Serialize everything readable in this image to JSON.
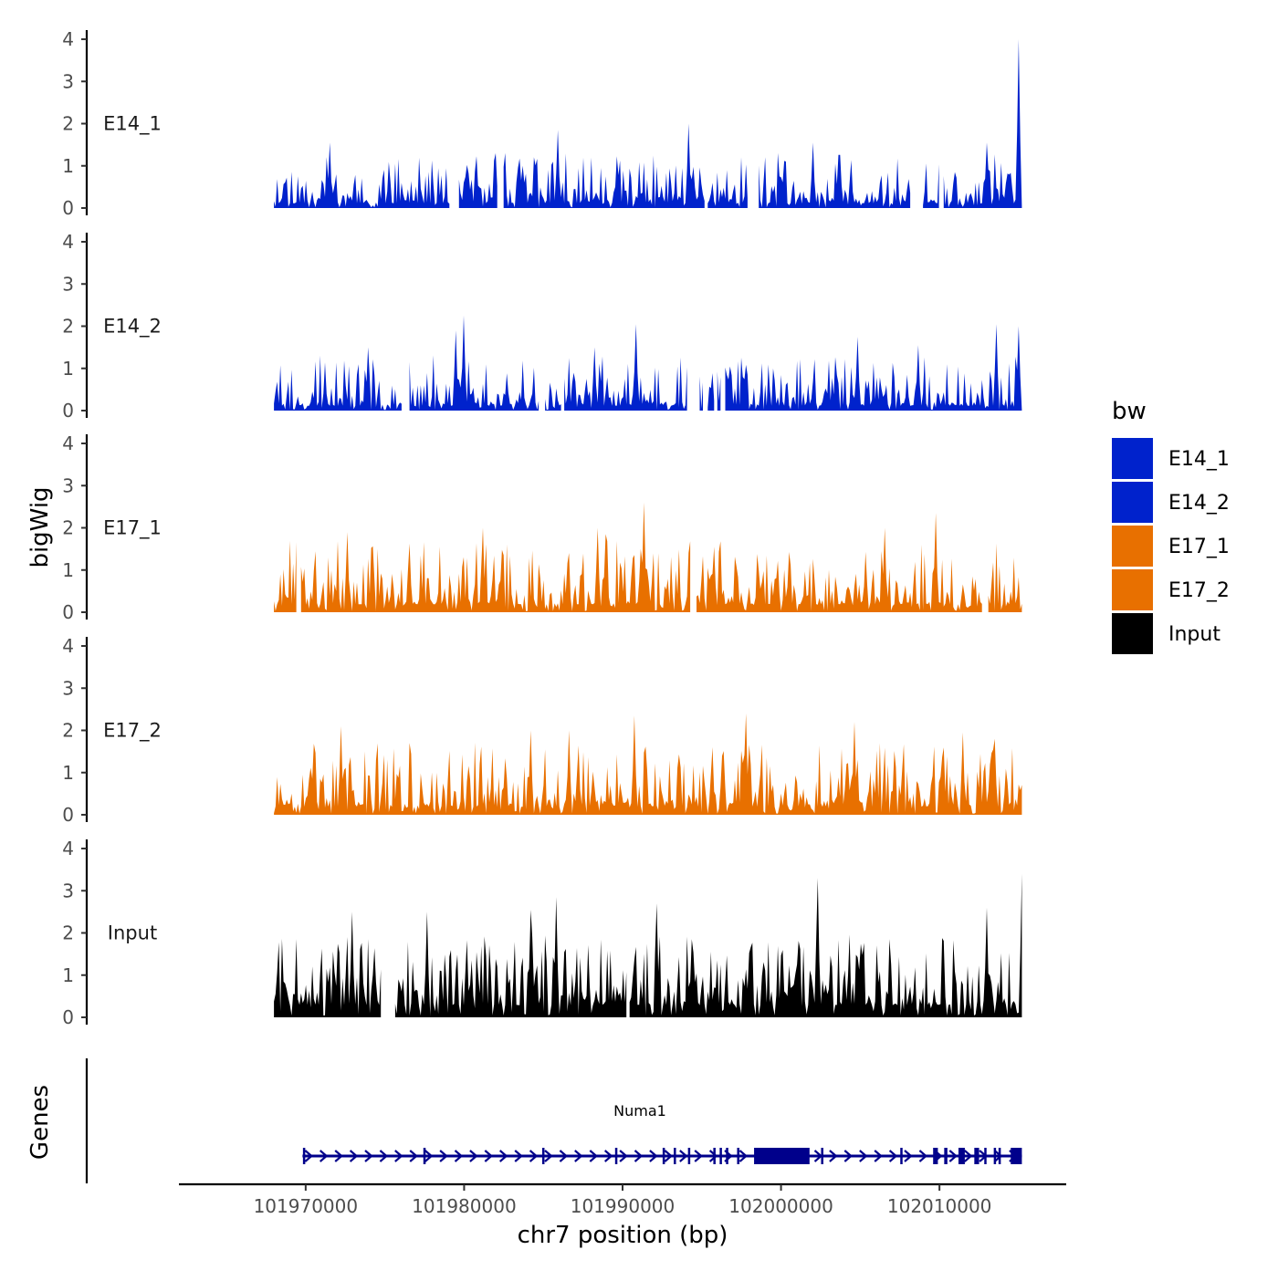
{
  "chart_data": {
    "type": "area",
    "ylabel": "bigWig",
    "xlabel": "chr7 position (bp)",
    "gene_track_label": "Genes",
    "legend_title": "bw",
    "xlim": [
      101962000,
      102018000
    ],
    "x_ticks": [
      101970000,
      101980000,
      101990000,
      102000000,
      102010000
    ],
    "x_tick_labels": [
      "101970000",
      "101980000",
      "101990000",
      "102000000",
      "102010000"
    ],
    "data_range": [
      101968000,
      102015200
    ],
    "ylim": [
      0,
      4.3
    ],
    "y_ticks": [
      0,
      1,
      2,
      3,
      4
    ],
    "y_tick_labels": [
      "0",
      "1",
      "2",
      "3",
      "4"
    ],
    "tracks": [
      {
        "name": "E14_1",
        "color": "#0022CC",
        "seed": 11,
        "base": 0.45,
        "spread": 0.75,
        "gap_prob": 0.22,
        "peaks": [
          [
            102015000,
            4.0
          ],
          [
            101994200,
            2.0
          ],
          [
            101985900,
            1.85
          ],
          [
            102013000,
            1.55
          ],
          [
            102002000,
            1.55
          ],
          [
            101971500,
            1.55
          ],
          [
            101982000,
            1.3
          ]
        ]
      },
      {
        "name": "E14_2",
        "color": "#0022CC",
        "seed": 23,
        "base": 0.45,
        "spread": 0.75,
        "gap_prob": 0.2,
        "peaks": [
          [
            101980000,
            2.25
          ],
          [
            101979500,
            1.9
          ],
          [
            101990800,
            2.05
          ],
          [
            102013600,
            2.05
          ],
          [
            102015000,
            2.0
          ],
          [
            102008700,
            1.55
          ],
          [
            101973900,
            1.5
          ],
          [
            101988200,
            1.5
          ],
          [
            102004800,
            1.75
          ]
        ]
      },
      {
        "name": "E17_1",
        "color": "#E87000",
        "seed": 37,
        "base": 0.75,
        "spread": 0.95,
        "gap_prob": 0.06,
        "peaks": [
          [
            101991300,
            2.6
          ],
          [
            102009800,
            2.35
          ],
          [
            101981200,
            2.0
          ],
          [
            101988400,
            2.0
          ],
          [
            102006500,
            2.0
          ],
          [
            101972600,
            1.9
          ],
          [
            101988900,
            1.85
          ],
          [
            101995800,
            1.55
          ]
        ]
      },
      {
        "name": "E17_2",
        "color": "#E87000",
        "seed": 53,
        "base": 0.75,
        "spread": 0.95,
        "gap_prob": 0.06,
        "peaks": [
          [
            101997800,
            2.4
          ],
          [
            101990700,
            2.35
          ],
          [
            102004600,
            2.2
          ],
          [
            101972200,
            2.1
          ],
          [
            101984200,
            2.0
          ],
          [
            101986600,
            2.0
          ],
          [
            102011500,
            1.95
          ],
          [
            102013500,
            1.8
          ]
        ]
      },
      {
        "name": "Input",
        "color": "#000000",
        "seed": 71,
        "base": 1.15,
        "spread": 1.05,
        "gap_prob": 0.02,
        "peaks": [
          [
            102002300,
            3.3
          ],
          [
            102015200,
            3.4
          ],
          [
            101985800,
            2.85
          ],
          [
            101992200,
            2.7
          ],
          [
            102013000,
            2.6
          ],
          [
            101972900,
            2.5
          ],
          [
            101984200,
            2.55
          ],
          [
            101977700,
            2.5
          ]
        ]
      }
    ],
    "gene": {
      "name": "Numa1",
      "color": "#00008B",
      "start": 101969800,
      "end": 102015200,
      "strand": "+",
      "exons": [
        [
          101998300,
          102001800
        ],
        [
          102009600,
          102009900
        ],
        [
          102010300,
          102010500
        ],
        [
          102011200,
          102011600
        ],
        [
          102012200,
          102012500
        ],
        [
          102014500,
          102015200
        ]
      ],
      "exon_marks": [
        101969900,
        101977500,
        101985000,
        101989600,
        101992600,
        101993300,
        101994200,
        101995800,
        101996200,
        101996600,
        101997300,
        102002600,
        102007600,
        102012900,
        102013500,
        102013800
      ]
    }
  }
}
